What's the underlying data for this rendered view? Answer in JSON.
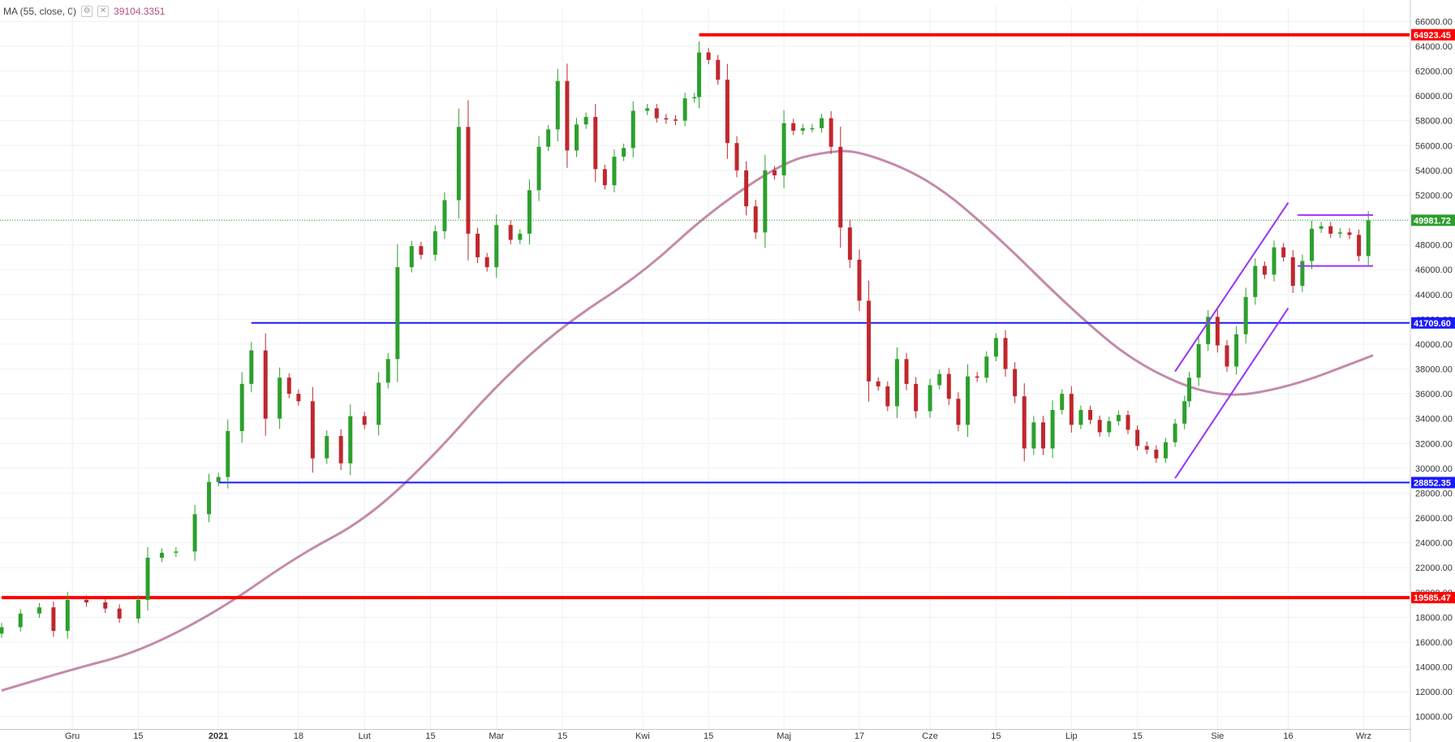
{
  "indicator": {
    "label": "MA (55, close, 0)",
    "value": "39104.3351",
    "settings_icon": "gear-icon",
    "close_icon": "close-icon"
  },
  "colors": {
    "up": "#2ca02c",
    "down": "#c0272d",
    "ma": "#c48aab",
    "resistance": "#ff0000",
    "range": "#1a1aff",
    "channel": "#9b30ff",
    "grid": "#eef1f6",
    "current_price_line": "#2e9e2e"
  },
  "chart_data": {
    "type": "candlestick",
    "title": "",
    "ylim": [
      9000,
      67200
    ],
    "y_ticks": [
      "10000.00",
      "12000.00",
      "14000.00",
      "16000.00",
      "18000.00",
      "20000.00",
      "22000.00",
      "24000.00",
      "26000.00",
      "28000.00",
      "30000.00",
      "32000.00",
      "34000.00",
      "36000.00",
      "38000.00",
      "40000.00",
      "42000.00",
      "44000.00",
      "46000.00",
      "48000.00",
      "50000.00",
      "52000.00",
      "54000.00",
      "56000.00",
      "58000.00",
      "60000.00",
      "62000.00",
      "64000.00",
      "66000.00"
    ],
    "x_ticks": [
      {
        "label": "Gru",
        "x": "2020-12-01"
      },
      {
        "label": "15",
        "x": "2020-12-15"
      },
      {
        "label": "2021",
        "x": "2021-01-01"
      },
      {
        "label": "18",
        "x": "2021-01-18"
      },
      {
        "label": "Lut",
        "x": "2021-02-01"
      },
      {
        "label": "15",
        "x": "2021-02-15"
      },
      {
        "label": "Mar",
        "x": "2021-03-01"
      },
      {
        "label": "15",
        "x": "2021-03-15"
      },
      {
        "label": "Kwi",
        "x": "2021-04-01"
      },
      {
        "label": "15",
        "x": "2021-04-15"
      },
      {
        "label": "Maj",
        "x": "2021-05-01"
      },
      {
        "label": "17",
        "x": "2021-05-17"
      },
      {
        "label": "Cze",
        "x": "2021-06-01"
      },
      {
        "label": "15",
        "x": "2021-06-15"
      },
      {
        "label": "Lip",
        "x": "2021-07-01"
      },
      {
        "label": "15",
        "x": "2021-07-15"
      },
      {
        "label": "Sie",
        "x": "2021-08-01"
      },
      {
        "label": "16",
        "x": "2021-08-16"
      },
      {
        "label": "Wrz",
        "x": "2021-09-01"
      }
    ],
    "closes": [
      {
        "date": "2020-11-16",
        "close": 17200
      },
      {
        "date": "2020-11-20",
        "close": 18300
      },
      {
        "date": "2020-11-24",
        "close": 18800
      },
      {
        "date": "2020-11-27",
        "close": 16900
      },
      {
        "date": "2020-11-30",
        "close": 19400
      },
      {
        "date": "2020-12-04",
        "close": 19200
      },
      {
        "date": "2020-12-08",
        "close": 18700
      },
      {
        "date": "2020-12-11",
        "close": 17900
      },
      {
        "date": "2020-12-15",
        "close": 19400
      },
      {
        "date": "2020-12-17",
        "close": 22800
      },
      {
        "date": "2020-12-20",
        "close": 23200
      },
      {
        "date": "2020-12-23",
        "close": 23300
      },
      {
        "date": "2020-12-27",
        "close": 26300
      },
      {
        "date": "2020-12-30",
        "close": 28900
      },
      {
        "date": "2021-01-01",
        "close": 29300
      },
      {
        "date": "2021-01-03",
        "close": 33000
      },
      {
        "date": "2021-01-06",
        "close": 36800
      },
      {
        "date": "2021-01-08",
        "close": 39500
      },
      {
        "date": "2021-01-11",
        "close": 34000
      },
      {
        "date": "2021-01-14",
        "close": 37300
      },
      {
        "date": "2021-01-16",
        "close": 36000
      },
      {
        "date": "2021-01-18",
        "close": 35400
      },
      {
        "date": "2021-01-21",
        "close": 30800
      },
      {
        "date": "2021-01-24",
        "close": 32600
      },
      {
        "date": "2021-01-27",
        "close": 30400
      },
      {
        "date": "2021-01-29",
        "close": 34200
      },
      {
        "date": "2021-02-01",
        "close": 33500
      },
      {
        "date": "2021-02-04",
        "close": 36900
      },
      {
        "date": "2021-02-06",
        "close": 38800
      },
      {
        "date": "2021-02-08",
        "close": 46200
      },
      {
        "date": "2021-02-11",
        "close": 47900
      },
      {
        "date": "2021-02-13",
        "close": 47200
      },
      {
        "date": "2021-02-16",
        "close": 49100
      },
      {
        "date": "2021-02-18",
        "close": 51600
      },
      {
        "date": "2021-02-21",
        "close": 57500
      },
      {
        "date": "2021-02-23",
        "close": 48900
      },
      {
        "date": "2021-02-25",
        "close": 47000
      },
      {
        "date": "2021-02-27",
        "close": 46200
      },
      {
        "date": "2021-03-01",
        "close": 49600
      },
      {
        "date": "2021-03-04",
        "close": 48400
      },
      {
        "date": "2021-03-06",
        "close": 48900
      },
      {
        "date": "2021-03-08",
        "close": 52400
      },
      {
        "date": "2021-03-10",
        "close": 55900
      },
      {
        "date": "2021-03-12",
        "close": 57300
      },
      {
        "date": "2021-03-14",
        "close": 61200
      },
      {
        "date": "2021-03-16",
        "close": 55600
      },
      {
        "date": "2021-03-18",
        "close": 57700
      },
      {
        "date": "2021-03-20",
        "close": 58300
      },
      {
        "date": "2021-03-22",
        "close": 54100
      },
      {
        "date": "2021-03-24",
        "close": 52800
      },
      {
        "date": "2021-03-26",
        "close": 55100
      },
      {
        "date": "2021-03-28",
        "close": 55800
      },
      {
        "date": "2021-03-30",
        "close": 58800
      },
      {
        "date": "2021-04-02",
        "close": 59000
      },
      {
        "date": "2021-04-04",
        "close": 58200
      },
      {
        "date": "2021-04-06",
        "close": 58100
      },
      {
        "date": "2021-04-08",
        "close": 58000
      },
      {
        "date": "2021-04-10",
        "close": 59800
      },
      {
        "date": "2021-04-12",
        "close": 59900
      },
      {
        "date": "2021-04-13",
        "close": 63500
      },
      {
        "date": "2021-04-15",
        "close": 62900
      },
      {
        "date": "2021-04-17",
        "close": 61300
      },
      {
        "date": "2021-04-19",
        "close": 56200
      },
      {
        "date": "2021-04-21",
        "close": 54000
      },
      {
        "date": "2021-04-23",
        "close": 51100
      },
      {
        "date": "2021-04-25",
        "close": 49000
      },
      {
        "date": "2021-04-27",
        "close": 54000
      },
      {
        "date": "2021-04-29",
        "close": 53600
      },
      {
        "date": "2021-05-01",
        "close": 57800
      },
      {
        "date": "2021-05-03",
        "close": 57200
      },
      {
        "date": "2021-05-05",
        "close": 57400
      },
      {
        "date": "2021-05-07",
        "close": 57400
      },
      {
        "date": "2021-05-09",
        "close": 58200
      },
      {
        "date": "2021-05-11",
        "close": 55900
      },
      {
        "date": "2021-05-13",
        "close": 49400
      },
      {
        "date": "2021-05-15",
        "close": 46800
      },
      {
        "date": "2021-05-17",
        "close": 43500
      },
      {
        "date": "2021-05-19",
        "close": 37000
      },
      {
        "date": "2021-05-21",
        "close": 36600
      },
      {
        "date": "2021-05-23",
        "close": 35000
      },
      {
        "date": "2021-05-25",
        "close": 38800
      },
      {
        "date": "2021-05-27",
        "close": 36800
      },
      {
        "date": "2021-05-29",
        "close": 34600
      },
      {
        "date": "2021-06-01",
        "close": 36700
      },
      {
        "date": "2021-06-03",
        "close": 37600
      },
      {
        "date": "2021-06-05",
        "close": 35600
      },
      {
        "date": "2021-06-07",
        "close": 33500
      },
      {
        "date": "2021-06-09",
        "close": 37400
      },
      {
        "date": "2021-06-11",
        "close": 37300
      },
      {
        "date": "2021-06-13",
        "close": 39000
      },
      {
        "date": "2021-06-15",
        "close": 40500
      },
      {
        "date": "2021-06-17",
        "close": 38000
      },
      {
        "date": "2021-06-19",
        "close": 35800
      },
      {
        "date": "2021-06-21",
        "close": 31600
      },
      {
        "date": "2021-06-23",
        "close": 33700
      },
      {
        "date": "2021-06-25",
        "close": 31600
      },
      {
        "date": "2021-06-27",
        "close": 34700
      },
      {
        "date": "2021-06-29",
        "close": 36000
      },
      {
        "date": "2021-07-01",
        "close": 33500
      },
      {
        "date": "2021-07-03",
        "close": 34700
      },
      {
        "date": "2021-07-05",
        "close": 33900
      },
      {
        "date": "2021-07-07",
        "close": 32900
      },
      {
        "date": "2021-07-09",
        "close": 33800
      },
      {
        "date": "2021-07-11",
        "close": 34300
      },
      {
        "date": "2021-07-13",
        "close": 33100
      },
      {
        "date": "2021-07-15",
        "close": 31800
      },
      {
        "date": "2021-07-17",
        "close": 31500
      },
      {
        "date": "2021-07-19",
        "close": 30800
      },
      {
        "date": "2021-07-21",
        "close": 32100
      },
      {
        "date": "2021-07-23",
        "close": 33600
      },
      {
        "date": "2021-07-25",
        "close": 35400
      },
      {
        "date": "2021-07-26",
        "close": 37300
      },
      {
        "date": "2021-07-28",
        "close": 40000
      },
      {
        "date": "2021-07-30",
        "close": 42200
      },
      {
        "date": "2021-08-01",
        "close": 39900
      },
      {
        "date": "2021-08-03",
        "close": 38200
      },
      {
        "date": "2021-08-05",
        "close": 40800
      },
      {
        "date": "2021-08-07",
        "close": 43800
      },
      {
        "date": "2021-08-09",
        "close": 46300
      },
      {
        "date": "2021-08-11",
        "close": 45600
      },
      {
        "date": "2021-08-13",
        "close": 47800
      },
      {
        "date": "2021-08-15",
        "close": 47000
      },
      {
        "date": "2021-08-17",
        "close": 44700
      },
      {
        "date": "2021-08-19",
        "close": 46700
      },
      {
        "date": "2021-08-21",
        "close": 49300
      },
      {
        "date": "2021-08-23",
        "close": 49500
      },
      {
        "date": "2021-08-25",
        "close": 48900
      },
      {
        "date": "2021-08-27",
        "close": 49000
      },
      {
        "date": "2021-08-29",
        "close": 48800
      },
      {
        "date": "2021-08-31",
        "close": 47100
      },
      {
        "date": "2021-09-02",
        "close": 49981.72
      }
    ],
    "ma": {
      "name": "MA (55, close, 0)",
      "points": [
        {
          "date": "2020-11-16",
          "value": 12100
        },
        {
          "date": "2020-12-01",
          "value": 13800
        },
        {
          "date": "2020-12-15",
          "value": 15200
        },
        {
          "date": "2021-01-01",
          "value": 18500
        },
        {
          "date": "2021-01-18",
          "value": 23000
        },
        {
          "date": "2021-02-01",
          "value": 25800
        },
        {
          "date": "2021-02-15",
          "value": 30700
        },
        {
          "date": "2021-03-01",
          "value": 36700
        },
        {
          "date": "2021-03-15",
          "value": 41500
        },
        {
          "date": "2021-04-01",
          "value": 45700
        },
        {
          "date": "2021-04-15",
          "value": 50600
        },
        {
          "date": "2021-05-01",
          "value": 54700
        },
        {
          "date": "2021-05-10",
          "value": 55500
        },
        {
          "date": "2021-05-17",
          "value": 55600
        },
        {
          "date": "2021-06-01",
          "value": 53300
        },
        {
          "date": "2021-06-15",
          "value": 48800
        },
        {
          "date": "2021-07-01",
          "value": 42800
        },
        {
          "date": "2021-07-15",
          "value": 38300
        },
        {
          "date": "2021-08-01",
          "value": 35600
        },
        {
          "date": "2021-08-16",
          "value": 36500
        },
        {
          "date": "2021-09-01",
          "value": 38800
        },
        {
          "date": "2021-09-03",
          "value": 39104.3351
        }
      ]
    },
    "horizontal_lines": [
      {
        "value": 64923.45,
        "label": "64923.45",
        "start": "2021-04-13",
        "style": "resistance"
      },
      {
        "value": 19585.47,
        "label": "19585.47",
        "start": "2020-11-16",
        "style": "resistance"
      },
      {
        "value": 41709.6,
        "label": "41709.60",
        "start": "2021-01-08",
        "style": "range"
      },
      {
        "value": 28852.35,
        "label": "28852.35",
        "start": "2021-01-01",
        "style": "range"
      }
    ],
    "current_price": {
      "value": 49981.72,
      "label": "49981.72"
    },
    "channel_lines": [
      {
        "from": {
          "date": "2021-07-23",
          "value": 37800
        },
        "to": {
          "date": "2021-08-16",
          "value": 51400
        }
      },
      {
        "from": {
          "date": "2021-07-23",
          "value": 29200
        },
        "to": {
          "date": "2021-08-16",
          "value": 42900
        }
      },
      {
        "from": {
          "date": "2021-08-18",
          "value": 50400
        },
        "to": {
          "date": "2021-09-03",
          "value": 50400
        }
      },
      {
        "from": {
          "date": "2021-08-18",
          "value": 46300
        },
        "to": {
          "date": "2021-09-03",
          "value": 46300
        }
      }
    ]
  }
}
